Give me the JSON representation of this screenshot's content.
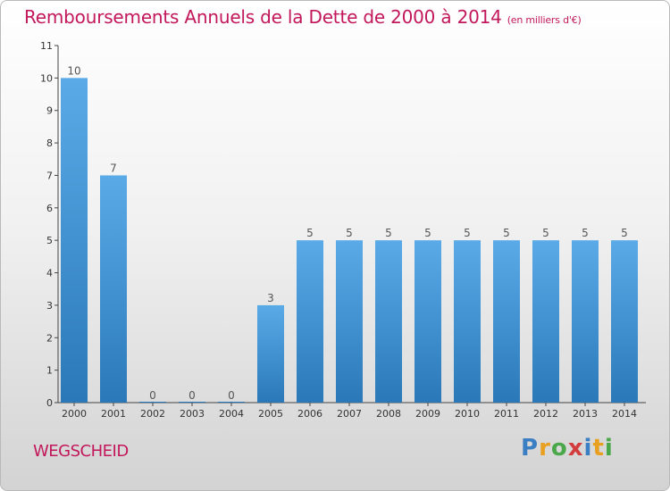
{
  "header": {
    "title": "Remboursements Annuels de la Dette de 2000 à 2014",
    "unit": "(en milliers d'€)"
  },
  "footer": {
    "commune": "WEGSCHEID",
    "logo": [
      "P",
      "r",
      "o",
      "x",
      "i",
      "t",
      "i"
    ]
  },
  "colors": {
    "bar_top": "#5aaae8",
    "bar_bottom": "#2a78b8",
    "title": "#c2185b"
  },
  "chart_data": {
    "type": "bar",
    "title": "Remboursements Annuels de la Dette de 2000 à 2014",
    "xlabel": "",
    "ylabel": "",
    "categories": [
      "2000",
      "2001",
      "2002",
      "2003",
      "2004",
      "2005",
      "2006",
      "2007",
      "2008",
      "2009",
      "2010",
      "2011",
      "2012",
      "2013",
      "2014"
    ],
    "values": [
      10,
      7,
      0,
      0,
      0,
      3,
      5,
      5,
      5,
      5,
      5,
      5,
      5,
      5,
      5
    ],
    "data_labels": [
      "10",
      "7",
      "0",
      "0",
      "0",
      "3",
      "5",
      "5",
      "5",
      "5",
      "5",
      "5",
      "5",
      "5",
      "5"
    ],
    "y_ticks": [
      "0",
      "1",
      "2",
      "3",
      "4",
      "5",
      "6",
      "7",
      "8",
      "9",
      "10",
      "11"
    ],
    "ylim": [
      0,
      11
    ],
    "grid": false,
    "legend": "none"
  }
}
